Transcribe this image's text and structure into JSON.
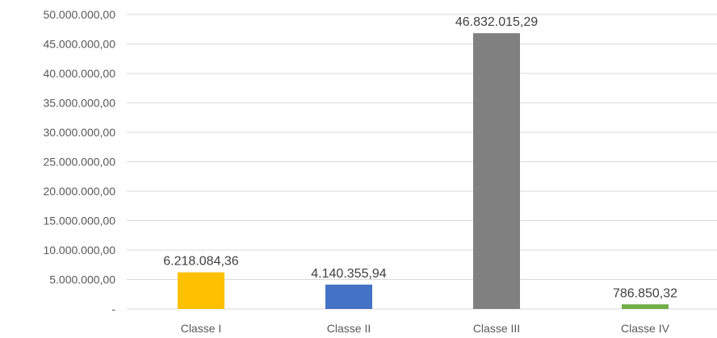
{
  "chart_data": {
    "type": "bar",
    "categories": [
      "Classe I",
      "Classe II",
      "Classe III",
      "Classe IV"
    ],
    "values": [
      6218084.36,
      4140355.94,
      46832015.29,
      786850.32
    ],
    "value_labels": [
      "6.218.084,36",
      "4.140.355,94",
      "46.832.015,29",
      "786.850,32"
    ],
    "colors": [
      "#FFC000",
      "#4472C4",
      "#808080",
      "#70AD47"
    ],
    "ylim": [
      0,
      50000000
    ],
    "y_ticks": [
      0,
      5000000,
      10000000,
      15000000,
      20000000,
      25000000,
      30000000,
      35000000,
      40000000,
      45000000,
      50000000
    ],
    "y_tick_labels": [
      "-",
      "5.000.000,00",
      "10.000.000,00",
      "15.000.000,00",
      "20.000.000,00",
      "25.000.000,00",
      "30.000.000,00",
      "35.000.000,00",
      "40.000.000,00",
      "45.000.000,00",
      "50.000.000,00"
    ],
    "grid": true,
    "legend": "none",
    "title": "",
    "xlabel": "",
    "ylabel": ""
  }
}
